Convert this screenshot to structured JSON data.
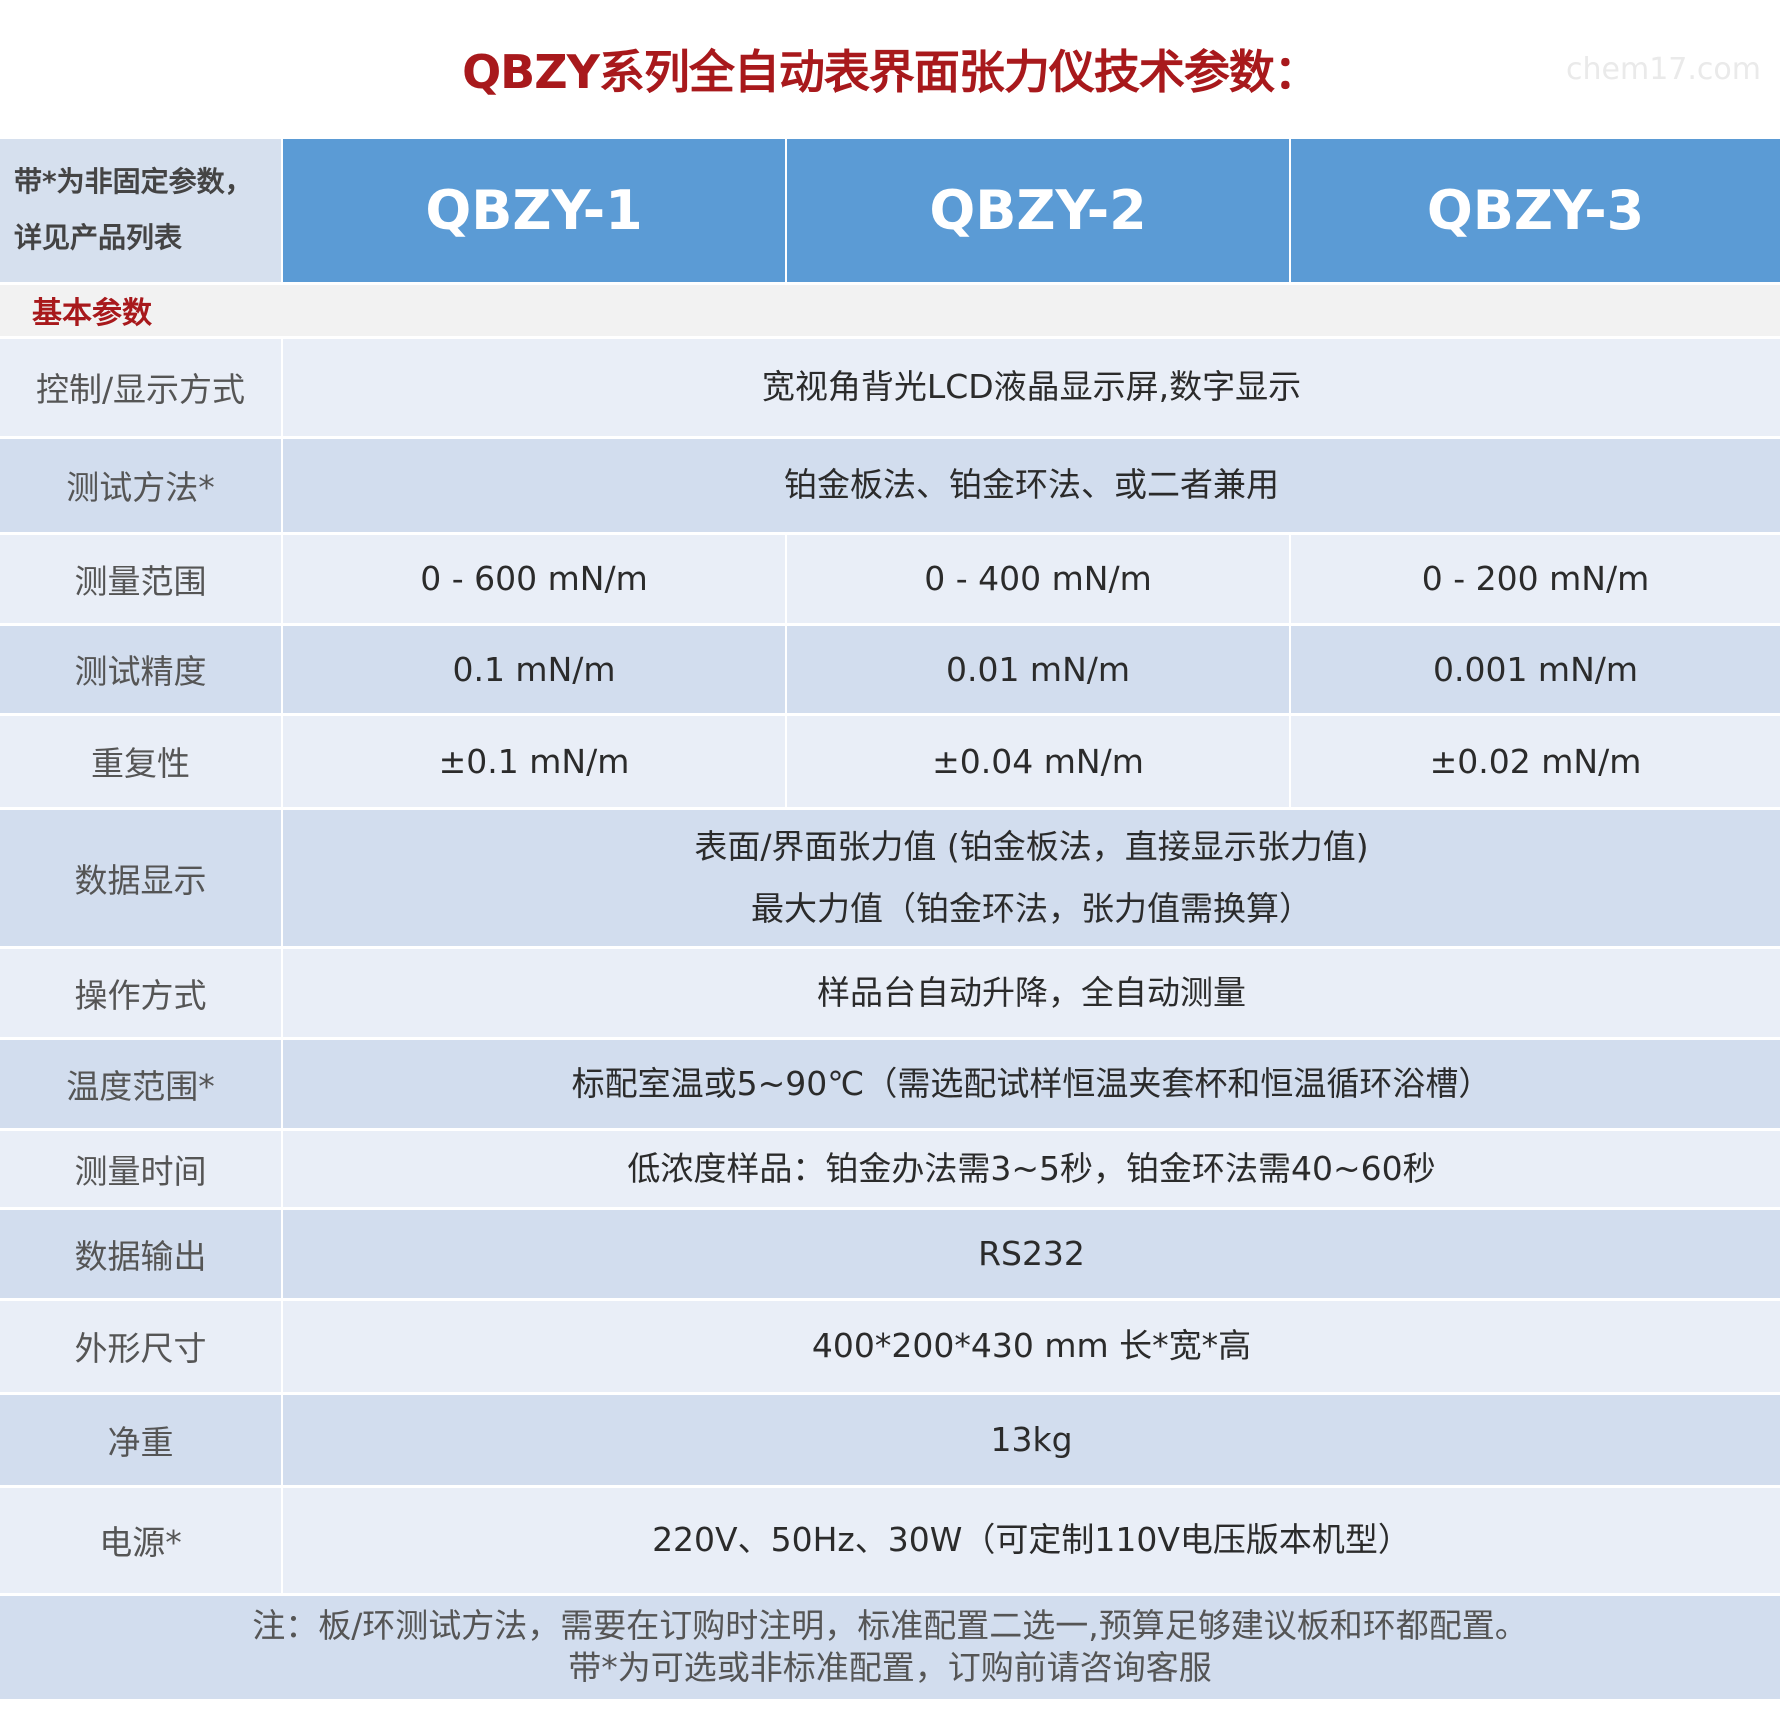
{
  "title": "QBZY系列全自动表界面张力仪技术参数：",
  "watermark": "chem17.com",
  "header": {
    "corner_line1": "带*为非固定参数，",
    "corner_line2": "详见产品列表",
    "models": [
      "QBZY-1",
      "QBZY-2",
      "QBZY-3"
    ]
  },
  "section": "基本参数",
  "rows": [
    {
      "label": "控制/显示方式",
      "value": "宽视角背光LCD液晶显示屏,数字显示"
    },
    {
      "label": "测试方法*",
      "value": "铂金板法、铂金环法、或二者兼用"
    },
    {
      "label": "测量范围",
      "values": [
        "0 - 600 mN/m",
        "0 - 400 mN/m",
        "0 - 200 mN/m"
      ]
    },
    {
      "label": "测试精度",
      "values": [
        "0.1 mN/m",
        "0.01 mN/m",
        "0.001 mN/m"
      ]
    },
    {
      "label": "重复性",
      "values": [
        "±0.1 mN/m",
        "±0.04 mN/m",
        "±0.02 mN/m"
      ]
    },
    {
      "label": "数据显示",
      "value": "表面/界面张力值 (铂金板法，直接显示张力值)",
      "value2": "最大力值（铂金环法，张力值需换算）"
    },
    {
      "label": "操作方式",
      "value": "样品台自动升降，全自动测量"
    },
    {
      "label": "温度范围*",
      "value": "标配室温或5~90℃（需选配试样恒温夹套杯和恒温循环浴槽）"
    },
    {
      "label": "测量时间",
      "value": "低浓度样品：铂金办法需3~5秒，铂金环法需40~60秒"
    },
    {
      "label": "数据输出",
      "value": "RS232"
    },
    {
      "label": "外形尺寸",
      "value": "400*200*430 mm 长*宽*高"
    },
    {
      "label": "净重",
      "value": "13kg"
    },
    {
      "label": "电源*",
      "value": "220V、50Hz、30W（可定制110V电压版本机型）"
    }
  ],
  "note": {
    "line1": "注：板/环测试方法，需要在订购时注明，标准配置二选一,预算足够建议板和环都配置。",
    "line2": "带*为可选或非标准配置，订购前请咨询客服"
  }
}
